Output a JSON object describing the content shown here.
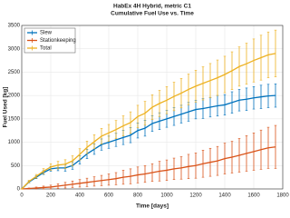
{
  "chart_data": {
    "type": "line",
    "title": "HabEx 4H Hybrid, metric C1",
    "subtitle": "Cumulative Fuel Use vs. Time",
    "x_label": "Time [days]",
    "y_label": "Fuel Used [kg]",
    "x": [
      0,
      50,
      100,
      150,
      200,
      250,
      300,
      350,
      400,
      450,
      500,
      550,
      600,
      650,
      700,
      750,
      800,
      850,
      900,
      950,
      1000,
      1050,
      1100,
      1150,
      1200,
      1250,
      1300,
      1350,
      1400,
      1450,
      1500,
      1550,
      1600,
      1650,
      1700,
      1750
    ],
    "series": [
      {
        "name": "Slew",
        "color": "#0072bd",
        "values": [
          0,
          150,
          250,
          350,
          430,
          450,
          450,
          500,
          620,
          750,
          850,
          950,
          1000,
          1050,
          1100,
          1150,
          1250,
          1300,
          1400,
          1450,
          1500,
          1550,
          1600,
          1650,
          1700,
          1720,
          1750,
          1780,
          1800,
          1850,
          1900,
          1920,
          1950,
          1970,
          1990,
          2000
        ],
        "errors": [
          0,
          20,
          30,
          40,
          50,
          60,
          70,
          80,
          90,
          100,
          110,
          120,
          130,
          140,
          150,
          160,
          160,
          170,
          170,
          180,
          180,
          190,
          190,
          200,
          200,
          210,
          210,
          220,
          220,
          230,
          230,
          240,
          240,
          250,
          250,
          250
        ]
      },
      {
        "name": "Stationkeeping",
        "color": "#d95319",
        "values": [
          0,
          10,
          20,
          30,
          40,
          60,
          80,
          100,
          120,
          140,
          160,
          180,
          200,
          220,
          250,
          270,
          300,
          320,
          350,
          380,
          400,
          430,
          450,
          480,
          500,
          540,
          570,
          600,
          650,
          680,
          720,
          760,
          800,
          840,
          880,
          900
        ],
        "errors": [
          0,
          10,
          20,
          30,
          40,
          50,
          60,
          70,
          80,
          90,
          100,
          110,
          120,
          130,
          150,
          160,
          170,
          180,
          190,
          210,
          220,
          230,
          240,
          260,
          270,
          290,
          300,
          310,
          330,
          340,
          360,
          380,
          400,
          420,
          440,
          460
        ]
      },
      {
        "name": "Total",
        "color": "#edb120",
        "values": [
          0,
          160,
          270,
          380,
          470,
          510,
          530,
          600,
          740,
          890,
          1010,
          1130,
          1200,
          1270,
          1350,
          1420,
          1550,
          1620,
          1750,
          1830,
          1900,
          1980,
          2050,
          2130,
          2200,
          2260,
          2320,
          2380,
          2450,
          2530,
          2620,
          2680,
          2750,
          2810,
          2870,
          2900
        ],
        "errors": [
          0,
          25,
          40,
          55,
          70,
          80,
          95,
          110,
          120,
          135,
          150,
          165,
          180,
          195,
          215,
          230,
          240,
          255,
          265,
          280,
          290,
          305,
          315,
          330,
          340,
          355,
          365,
          380,
          390,
          405,
          420,
          440,
          460,
          480,
          490,
          500
        ]
      }
    ],
    "xlim": [
      0,
      1800
    ],
    "xticks": [
      0,
      200,
      400,
      600,
      800,
      1000,
      1200,
      1400,
      1600,
      1800
    ],
    "ylim": [
      0,
      3500
    ],
    "yticks": [
      0,
      500,
      1000,
      1500,
      2000,
      2500,
      3000,
      3500
    ],
    "grid": true,
    "legend": "top-left"
  }
}
